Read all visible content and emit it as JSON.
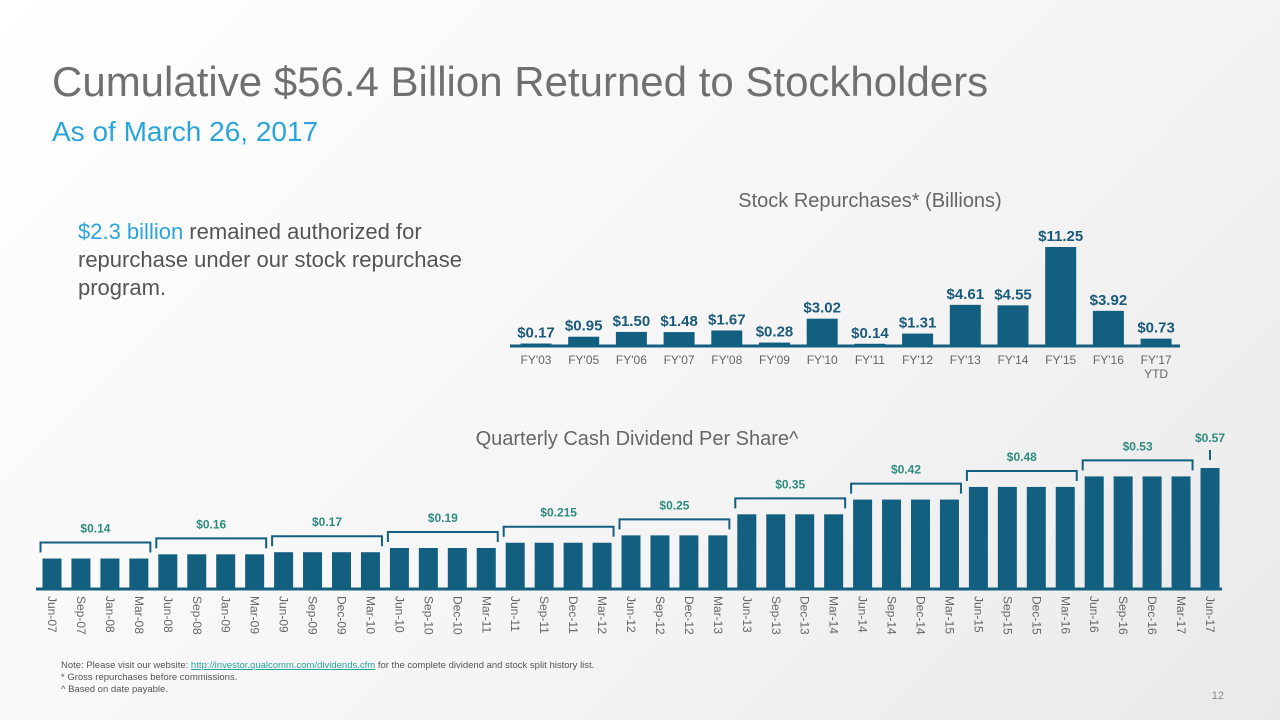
{
  "header": {
    "title": "Cumulative $56.4 Billion Returned to Stockholders",
    "subtitle": "As of March 26, 2017"
  },
  "authorization": {
    "highlight": "$2.3 billion",
    "text": " remained authorized for repurchase under our stock repurchase program."
  },
  "colors": {
    "bar": "#135f80",
    "label_top": "#1a5a7a",
    "label_div": "#2e8c7c",
    "title": "#707070",
    "accent": "#2aa5dc"
  },
  "chart_data": [
    {
      "type": "bar",
      "title": "Stock Repurchases* (Billions)",
      "categories": [
        "FY'03",
        "FY'05",
        "FY'06",
        "FY'07",
        "FY'08",
        "FY'09",
        "FY'10",
        "FY'11",
        "FY'12",
        "FY'13",
        "FY'14",
        "FY'15",
        "FY'16",
        "FY'17 YTD"
      ],
      "values": [
        0.17,
        0.95,
        1.5,
        1.48,
        1.67,
        0.28,
        3.02,
        0.14,
        1.31,
        4.61,
        4.55,
        11.25,
        3.92,
        0.73
      ],
      "labels": [
        "$0.17",
        "$0.95",
        "$1.50",
        "$1.48",
        "$1.67",
        "$0.28",
        "$3.02",
        "$0.14",
        "$1.31",
        "$4.61",
        "$4.55",
        "$11.25",
        "$3.92",
        "$0.73"
      ],
      "ylim": [
        0,
        11.25
      ]
    },
    {
      "type": "bar",
      "title": "Quarterly Cash Dividend Per Share^",
      "categories": [
        "Jun-07",
        "Sep-07",
        "Jan-08",
        "Mar-08",
        "Jun-08",
        "Sep-08",
        "Jan-09",
        "Mar-09",
        "Jun-09",
        "Sep-09",
        "Dec-09",
        "Mar-10",
        "Jun-10",
        "Sep-10",
        "Dec-10",
        "Mar-11",
        "Jun-11",
        "Sep-11",
        "Dec-11",
        "Mar-12",
        "Jun-12",
        "Sep-12",
        "Dec-12",
        "Mar-13",
        "Jun-13",
        "Sep-13",
        "Dec-13",
        "Mar-14",
        "Jun-14",
        "Sep-14",
        "Dec-14",
        "Mar-15",
        "Jun-15",
        "Sep-15",
        "Dec-15",
        "Mar-16",
        "Jun-16",
        "Sep-16",
        "Dec-16",
        "Mar-17",
        "Jun-17"
      ],
      "values": [
        0.14,
        0.14,
        0.14,
        0.14,
        0.16,
        0.16,
        0.16,
        0.16,
        0.17,
        0.17,
        0.17,
        0.17,
        0.19,
        0.19,
        0.19,
        0.19,
        0.215,
        0.215,
        0.215,
        0.215,
        0.25,
        0.25,
        0.25,
        0.25,
        0.35,
        0.35,
        0.35,
        0.35,
        0.42,
        0.42,
        0.42,
        0.42,
        0.48,
        0.48,
        0.48,
        0.48,
        0.53,
        0.53,
        0.53,
        0.53,
        0.57
      ],
      "group_labels": [
        "$0.14",
        "$0.16",
        "$0.17",
        "$0.19",
        "$0.215",
        "$0.25",
        "$0.35",
        "$0.42",
        "$0.48",
        "$0.53",
        "$0.57"
      ],
      "ylim": [
        0,
        0.57
      ]
    }
  ],
  "footer": {
    "note_prefix": "Note: Please visit our website: ",
    "note_link": "http://investor.qualcomm.com/dividends.cfm",
    "note_suffix": " for the complete dividend and stock split history list.",
    "footnote1": "* Gross repurchases before commissions.",
    "footnote2": "^ Based on date payable.",
    "page_number": "12"
  }
}
